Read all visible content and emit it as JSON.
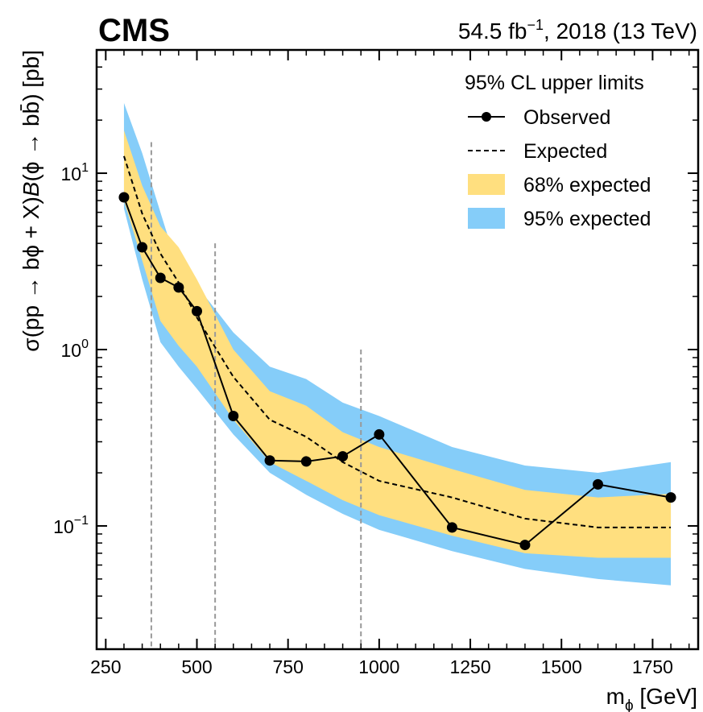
{
  "header": {
    "experiment": "CMS",
    "lumi_prefix": "54.5 fb",
    "lumi_exp": "−1",
    "lumi_suffix": ", 2018 (13 TeV)"
  },
  "chart_data": {
    "type": "line",
    "xlabel": "m_ϕ [GeV]",
    "ylabel": "σ(pp → bϕ + X)B(ϕ → bb̄) [pb]",
    "xlim": [
      225,
      1875
    ],
    "ylim": [
      0.02,
      50
    ],
    "y_scale": "log",
    "x_ticks": [
      250,
      500,
      750,
      1000,
      1250,
      1500,
      1750
    ],
    "x_tick_labels": [
      "250",
      "500",
      "750",
      "1000",
      "1250",
      "1500",
      "1750"
    ],
    "y_ticks": [
      10,
      1,
      0.1
    ],
    "y_tick_labels": [
      {
        "base": "10",
        "exp": "1"
      },
      {
        "base": "10",
        "exp": "0"
      },
      {
        "base": "10",
        "exp": "−1"
      }
    ],
    "legend": {
      "title": "95% CL upper limits",
      "placement": "top-right",
      "entries": [
        "Observed",
        "Expected",
        "68% expected",
        "95% expected"
      ]
    },
    "x": [
      300,
      350,
      400,
      450,
      500,
      600,
      700,
      800,
      900,
      1000,
      1200,
      1400,
      1600,
      1800
    ],
    "series": [
      {
        "name": "Observed",
        "values": [
          7.3,
          3.8,
          2.55,
          2.25,
          1.65,
          0.42,
          0.235,
          0.232,
          0.248,
          0.33,
          0.098,
          0.078,
          0.172,
          0.145
        ],
        "color": "#000000"
      },
      {
        "name": "Expected",
        "values": [
          12.5,
          5.9,
          3.5,
          2.4,
          1.52,
          0.7,
          0.4,
          0.32,
          0.23,
          0.18,
          0.145,
          0.11,
          0.098,
          0.098
        ],
        "color": "#000000"
      }
    ],
    "band_68": {
      "name": "68% expected",
      "color": "#ffdf7f",
      "low": [
        7.0,
        3.2,
        1.45,
        1.05,
        0.8,
        0.4,
        0.23,
        0.18,
        0.14,
        0.115,
        0.088,
        0.07,
        0.066,
        0.066
      ],
      "high": [
        17.5,
        8.5,
        5.0,
        3.8,
        2.5,
        1.0,
        0.58,
        0.48,
        0.34,
        0.28,
        0.21,
        0.16,
        0.145,
        0.152
      ]
    },
    "band_95": {
      "name": "95% expected",
      "color": "#85cdf9",
      "low": [
        6.3,
        2.5,
        1.1,
        0.8,
        0.6,
        0.33,
        0.2,
        0.15,
        0.117,
        0.095,
        0.072,
        0.057,
        0.05,
        0.046
      ],
      "high": [
        25,
        13,
        6.0,
        2.8,
        2.3,
        1.25,
        0.8,
        0.68,
        0.5,
        0.42,
        0.28,
        0.22,
        0.2,
        0.23
      ]
    },
    "vertical_lines": [
      {
        "x": 375,
        "ymax": 15
      },
      {
        "x": 550,
        "ymax": 4
      },
      {
        "x": 950,
        "ymax": 1
      }
    ],
    "grid": false
  }
}
